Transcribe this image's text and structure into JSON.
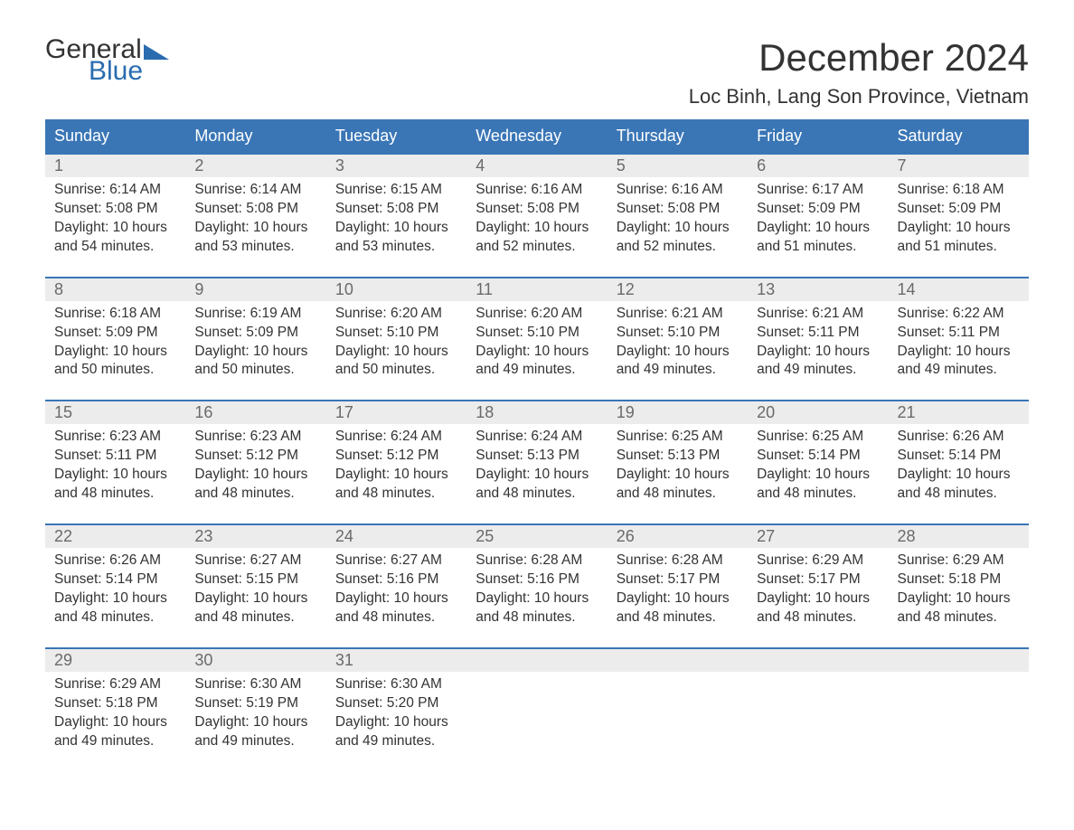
{
  "logo": {
    "word1": "General",
    "word2": "Blue",
    "triangle_color": "#2a6cb0",
    "text_color": "#333333",
    "blue_color": "#2a6cb0"
  },
  "title": "December 2024",
  "location": "Loc Binh, Lang Son Province, Vietnam",
  "colors": {
    "header_bg": "#3a76b6",
    "header_text": "#ffffff",
    "num_row_bg": "#ececec",
    "num_row_border": "#3a76b6",
    "num_text": "#6a6a6a",
    "body_text": "#333333",
    "page_bg": "#ffffff"
  },
  "typography": {
    "title_fontsize": 42,
    "location_fontsize": 22,
    "dayheader_fontsize": 18,
    "daynum_fontsize": 18,
    "body_fontsize": 15.5,
    "font_family": "Arial"
  },
  "day_headers": [
    "Sunday",
    "Monday",
    "Tuesday",
    "Wednesday",
    "Thursday",
    "Friday",
    "Saturday"
  ],
  "weeks": [
    [
      {
        "n": "1",
        "sunrise": "Sunrise: 6:14 AM",
        "sunset": "Sunset: 5:08 PM",
        "d1": "Daylight: 10 hours",
        "d2": "and 54 minutes."
      },
      {
        "n": "2",
        "sunrise": "Sunrise: 6:14 AM",
        "sunset": "Sunset: 5:08 PM",
        "d1": "Daylight: 10 hours",
        "d2": "and 53 minutes."
      },
      {
        "n": "3",
        "sunrise": "Sunrise: 6:15 AM",
        "sunset": "Sunset: 5:08 PM",
        "d1": "Daylight: 10 hours",
        "d2": "and 53 minutes."
      },
      {
        "n": "4",
        "sunrise": "Sunrise: 6:16 AM",
        "sunset": "Sunset: 5:08 PM",
        "d1": "Daylight: 10 hours",
        "d2": "and 52 minutes."
      },
      {
        "n": "5",
        "sunrise": "Sunrise: 6:16 AM",
        "sunset": "Sunset: 5:08 PM",
        "d1": "Daylight: 10 hours",
        "d2": "and 52 minutes."
      },
      {
        "n": "6",
        "sunrise": "Sunrise: 6:17 AM",
        "sunset": "Sunset: 5:09 PM",
        "d1": "Daylight: 10 hours",
        "d2": "and 51 minutes."
      },
      {
        "n": "7",
        "sunrise": "Sunrise: 6:18 AM",
        "sunset": "Sunset: 5:09 PM",
        "d1": "Daylight: 10 hours",
        "d2": "and 51 minutes."
      }
    ],
    [
      {
        "n": "8",
        "sunrise": "Sunrise: 6:18 AM",
        "sunset": "Sunset: 5:09 PM",
        "d1": "Daylight: 10 hours",
        "d2": "and 50 minutes."
      },
      {
        "n": "9",
        "sunrise": "Sunrise: 6:19 AM",
        "sunset": "Sunset: 5:09 PM",
        "d1": "Daylight: 10 hours",
        "d2": "and 50 minutes."
      },
      {
        "n": "10",
        "sunrise": "Sunrise: 6:20 AM",
        "sunset": "Sunset: 5:10 PM",
        "d1": "Daylight: 10 hours",
        "d2": "and 50 minutes."
      },
      {
        "n": "11",
        "sunrise": "Sunrise: 6:20 AM",
        "sunset": "Sunset: 5:10 PM",
        "d1": "Daylight: 10 hours",
        "d2": "and 49 minutes."
      },
      {
        "n": "12",
        "sunrise": "Sunrise: 6:21 AM",
        "sunset": "Sunset: 5:10 PM",
        "d1": "Daylight: 10 hours",
        "d2": "and 49 minutes."
      },
      {
        "n": "13",
        "sunrise": "Sunrise: 6:21 AM",
        "sunset": "Sunset: 5:11 PM",
        "d1": "Daylight: 10 hours",
        "d2": "and 49 minutes."
      },
      {
        "n": "14",
        "sunrise": "Sunrise: 6:22 AM",
        "sunset": "Sunset: 5:11 PM",
        "d1": "Daylight: 10 hours",
        "d2": "and 49 minutes."
      }
    ],
    [
      {
        "n": "15",
        "sunrise": "Sunrise: 6:23 AM",
        "sunset": "Sunset: 5:11 PM",
        "d1": "Daylight: 10 hours",
        "d2": "and 48 minutes."
      },
      {
        "n": "16",
        "sunrise": "Sunrise: 6:23 AM",
        "sunset": "Sunset: 5:12 PM",
        "d1": "Daylight: 10 hours",
        "d2": "and 48 minutes."
      },
      {
        "n": "17",
        "sunrise": "Sunrise: 6:24 AM",
        "sunset": "Sunset: 5:12 PM",
        "d1": "Daylight: 10 hours",
        "d2": "and 48 minutes."
      },
      {
        "n": "18",
        "sunrise": "Sunrise: 6:24 AM",
        "sunset": "Sunset: 5:13 PM",
        "d1": "Daylight: 10 hours",
        "d2": "and 48 minutes."
      },
      {
        "n": "19",
        "sunrise": "Sunrise: 6:25 AM",
        "sunset": "Sunset: 5:13 PM",
        "d1": "Daylight: 10 hours",
        "d2": "and 48 minutes."
      },
      {
        "n": "20",
        "sunrise": "Sunrise: 6:25 AM",
        "sunset": "Sunset: 5:14 PM",
        "d1": "Daylight: 10 hours",
        "d2": "and 48 minutes."
      },
      {
        "n": "21",
        "sunrise": "Sunrise: 6:26 AM",
        "sunset": "Sunset: 5:14 PM",
        "d1": "Daylight: 10 hours",
        "d2": "and 48 minutes."
      }
    ],
    [
      {
        "n": "22",
        "sunrise": "Sunrise: 6:26 AM",
        "sunset": "Sunset: 5:14 PM",
        "d1": "Daylight: 10 hours",
        "d2": "and 48 minutes."
      },
      {
        "n": "23",
        "sunrise": "Sunrise: 6:27 AM",
        "sunset": "Sunset: 5:15 PM",
        "d1": "Daylight: 10 hours",
        "d2": "and 48 minutes."
      },
      {
        "n": "24",
        "sunrise": "Sunrise: 6:27 AM",
        "sunset": "Sunset: 5:16 PM",
        "d1": "Daylight: 10 hours",
        "d2": "and 48 minutes."
      },
      {
        "n": "25",
        "sunrise": "Sunrise: 6:28 AM",
        "sunset": "Sunset: 5:16 PM",
        "d1": "Daylight: 10 hours",
        "d2": "and 48 minutes."
      },
      {
        "n": "26",
        "sunrise": "Sunrise: 6:28 AM",
        "sunset": "Sunset: 5:17 PM",
        "d1": "Daylight: 10 hours",
        "d2": "and 48 minutes."
      },
      {
        "n": "27",
        "sunrise": "Sunrise: 6:29 AM",
        "sunset": "Sunset: 5:17 PM",
        "d1": "Daylight: 10 hours",
        "d2": "and 48 minutes."
      },
      {
        "n": "28",
        "sunrise": "Sunrise: 6:29 AM",
        "sunset": "Sunset: 5:18 PM",
        "d1": "Daylight: 10 hours",
        "d2": "and 48 minutes."
      }
    ],
    [
      {
        "n": "29",
        "sunrise": "Sunrise: 6:29 AM",
        "sunset": "Sunset: 5:18 PM",
        "d1": "Daylight: 10 hours",
        "d2": "and 49 minutes."
      },
      {
        "n": "30",
        "sunrise": "Sunrise: 6:30 AM",
        "sunset": "Sunset: 5:19 PM",
        "d1": "Daylight: 10 hours",
        "d2": "and 49 minutes."
      },
      {
        "n": "31",
        "sunrise": "Sunrise: 6:30 AM",
        "sunset": "Sunset: 5:20 PM",
        "d1": "Daylight: 10 hours",
        "d2": "and 49 minutes."
      },
      {
        "n": "",
        "sunrise": "",
        "sunset": "",
        "d1": "",
        "d2": ""
      },
      {
        "n": "",
        "sunrise": "",
        "sunset": "",
        "d1": "",
        "d2": ""
      },
      {
        "n": "",
        "sunrise": "",
        "sunset": "",
        "d1": "",
        "d2": ""
      },
      {
        "n": "",
        "sunrise": "",
        "sunset": "",
        "d1": "",
        "d2": ""
      }
    ]
  ]
}
